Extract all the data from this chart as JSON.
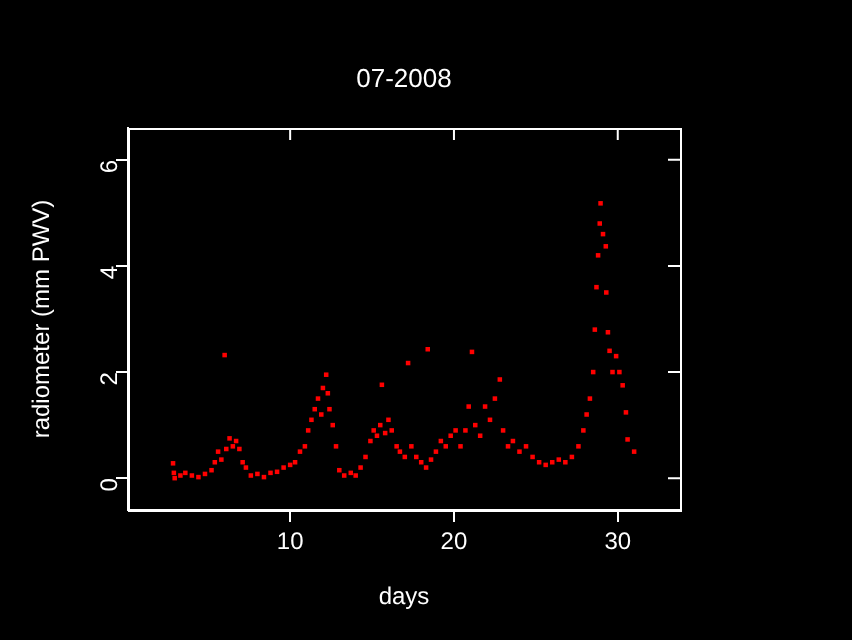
{
  "chart_data": {
    "type": "scatter",
    "title": "07-2008",
    "xlabel": "days",
    "ylabel": "radiometer (mm PWV)",
    "xlim": [
      0.1,
      33.8
    ],
    "ylim": [
      -0.6,
      6.6
    ],
    "xticks": [
      10,
      20,
      30
    ],
    "yticks": [
      0,
      2,
      4,
      6
    ],
    "grid": false,
    "legend": false,
    "marker": "square",
    "series": [
      {
        "color": "#ff0000",
        "x": [
          2.85,
          2.9,
          2.95,
          3.3,
          3.6,
          4.0,
          4.4,
          4.8,
          5.2,
          5.4,
          5.6,
          5.8,
          6.0,
          6.1,
          6.3,
          6.5,
          6.7,
          6.9,
          7.1,
          7.3,
          7.6,
          8.0,
          8.4,
          8.8,
          9.2,
          9.6,
          10.0,
          10.3,
          10.6,
          10.9,
          11.1,
          11.3,
          11.5,
          11.7,
          11.9,
          12.0,
          12.2,
          12.3,
          12.4,
          12.6,
          12.8,
          13.0,
          13.3,
          13.7,
          14.0,
          14.3,
          14.6,
          14.9,
          15.1,
          15.3,
          15.5,
          15.6,
          15.8,
          16.0,
          16.2,
          16.5,
          16.7,
          17.0,
          17.2,
          17.4,
          17.7,
          18.0,
          18.3,
          18.4,
          18.6,
          18.9,
          19.2,
          19.5,
          19.8,
          20.1,
          20.4,
          20.7,
          20.9,
          21.1,
          21.3,
          21.6,
          21.9,
          22.2,
          22.5,
          22.8,
          23.0,
          23.3,
          23.6,
          24.0,
          24.4,
          24.8,
          25.2,
          25.6,
          26.0,
          26.4,
          26.8,
          27.2,
          27.6,
          27.9,
          28.1,
          28.3,
          28.5,
          28.6,
          28.7,
          28.8,
          28.9,
          28.95,
          29.1,
          29.27,
          29.3,
          29.4,
          29.5,
          29.68,
          29.9,
          30.1,
          30.3,
          30.5,
          30.6,
          31.0
        ],
        "values": [
          0.28,
          0.1,
          0.0,
          0.05,
          0.1,
          0.05,
          0.02,
          0.08,
          0.15,
          0.3,
          0.5,
          0.35,
          2.32,
          0.55,
          0.75,
          0.6,
          0.7,
          0.55,
          0.3,
          0.2,
          0.05,
          0.08,
          0.02,
          0.1,
          0.12,
          0.2,
          0.25,
          0.3,
          0.5,
          0.6,
          0.9,
          1.1,
          1.3,
          1.5,
          1.2,
          1.7,
          1.95,
          1.6,
          1.3,
          1.0,
          0.6,
          0.15,
          0.05,
          0.1,
          0.05,
          0.2,
          0.4,
          0.7,
          0.9,
          0.8,
          1.0,
          1.76,
          0.85,
          1.1,
          0.9,
          0.6,
          0.5,
          0.4,
          2.17,
          0.6,
          0.4,
          0.3,
          0.2,
          2.43,
          0.35,
          0.5,
          0.7,
          0.6,
          0.8,
          0.9,
          0.6,
          0.9,
          1.35,
          2.38,
          1.0,
          0.8,
          1.35,
          1.1,
          1.5,
          1.86,
          0.9,
          0.6,
          0.7,
          0.5,
          0.6,
          0.4,
          0.3,
          0.25,
          0.3,
          0.35,
          0.3,
          0.4,
          0.6,
          0.9,
          1.2,
          1.5,
          2.0,
          2.8,
          3.6,
          4.2,
          4.8,
          5.18,
          4.6,
          4.37,
          3.5,
          2.75,
          2.4,
          2.0,
          2.3,
          2.0,
          1.75,
          1.24,
          0.73,
          0.5
        ]
      }
    ]
  }
}
